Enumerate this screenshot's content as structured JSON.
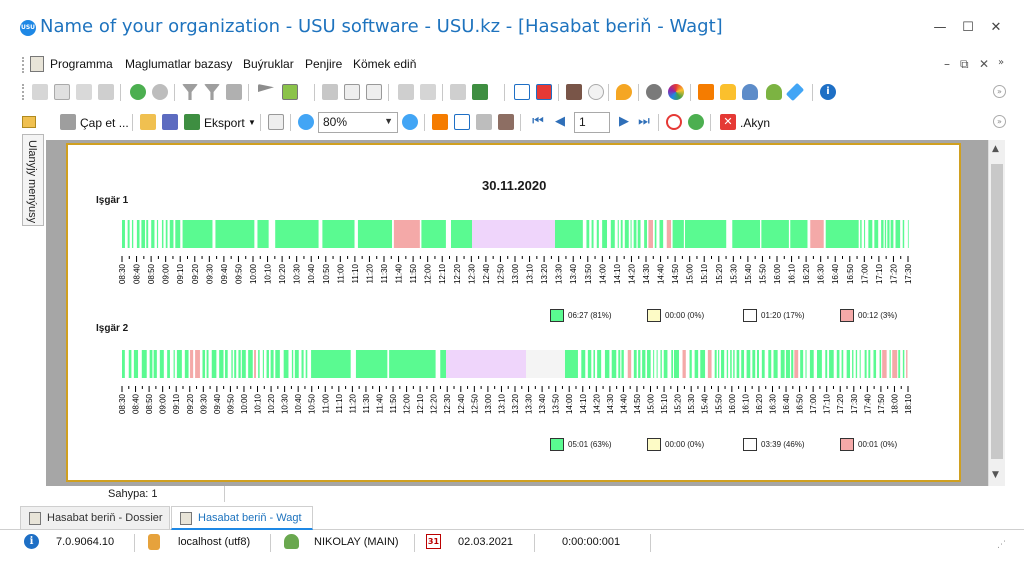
{
  "window": {
    "logo": "USU",
    "title": "Name of your organization - USU software - USU.kz - [Hasabat beriň - Wagt]",
    "minimize": "—",
    "maximize": "☐",
    "close": "✕"
  },
  "menu": {
    "items": [
      "Programma",
      "Maglumatlar bazasy",
      "Buýruklar",
      "Penjire",
      "Kömek ediň"
    ],
    "mdi_minimize": "–",
    "mdi_restore": "⧉",
    "mdi_close": "✕"
  },
  "toolbar2": {
    "print_label": "Çap et ...",
    "export_label": "Eksport",
    "zoom_value": "80%",
    "page_value": "1",
    "close_label": ".Akyn"
  },
  "sidebar": {
    "tab_label": "Ulanyjy menýusy"
  },
  "report": {
    "date": "30.11.2020",
    "colors": {
      "work": "#5afa91",
      "idle": "#fdfbc6",
      "empty": "#ffffff",
      "bad": "#f4a9a8",
      "break": "#efd5fb"
    },
    "workers": [
      {
        "name": "Işgär 1",
        "ticks": [
          "08:30",
          "08:40",
          "08:50",
          "09:00",
          "09:10",
          "09:20",
          "09:30",
          "09:40",
          "09:50",
          "10:00",
          "10:10",
          "10:20",
          "10:30",
          "10:40",
          "10:50",
          "11:00",
          "11:10",
          "11:20",
          "11:30",
          "11:40",
          "11:50",
          "12:00",
          "12:10",
          "12:20",
          "12:30",
          "12:40",
          "12:50",
          "13:00",
          "13:10",
          "13:20",
          "13:30",
          "13:40",
          "13:50",
          "14:00",
          "14:10",
          "14:20",
          "14:30",
          "14:40",
          "14:50",
          "15:00",
          "15:10",
          "15:20",
          "15:30",
          "15:40",
          "15:50",
          "16:00",
          "16:10",
          "16:20",
          "16:30",
          "16:40",
          "16:50",
          "17:00",
          "17:10",
          "17:20",
          "17:30"
        ],
        "legend": [
          "06:27 (81%)",
          "00:00 (0%)",
          "01:20 (17%)",
          "00:12 (3%)"
        ]
      },
      {
        "name": "Işgär 2",
        "ticks": [
          "08:30",
          "08:40",
          "08:50",
          "09:00",
          "09:10",
          "09:20",
          "09:30",
          "09:40",
          "09:50",
          "10:00",
          "10:10",
          "10:20",
          "10:30",
          "10:40",
          "10:50",
          "11:00",
          "11:10",
          "11:20",
          "11:30",
          "11:40",
          "11:50",
          "12:00",
          "12:10",
          "12:20",
          "12:30",
          "12:40",
          "12:50",
          "13:00",
          "13:10",
          "13:20",
          "13:30",
          "13:40",
          "13:50",
          "14:00",
          "14:10",
          "14:20",
          "14:30",
          "14:40",
          "14:50",
          "15:00",
          "15:10",
          "15:20",
          "15:30",
          "15:40",
          "15:50",
          "16:00",
          "16:10",
          "16:20",
          "16:30",
          "16:40",
          "16:50",
          "17:00",
          "17:10",
          "17:20",
          "17:30",
          "17:40",
          "17:50",
          "18:00",
          "18:10"
        ],
        "legend": [
          "05:01 (63%)",
          "00:00 (0%)",
          "03:39 (46%)",
          "00:01 (0%)"
        ]
      }
    ]
  },
  "status": {
    "page_label": "Sahypa: 1",
    "tabs": [
      "Hasabat beriň - Dossier",
      "Hasabat beriň - Wagt"
    ],
    "version": "7.0.9064.10",
    "server": "localhost (utf8)",
    "user": "NIKOLAY (MAIN)",
    "calendar_day": "31",
    "date": "02.03.2021",
    "timer": "0:00:00:001"
  }
}
